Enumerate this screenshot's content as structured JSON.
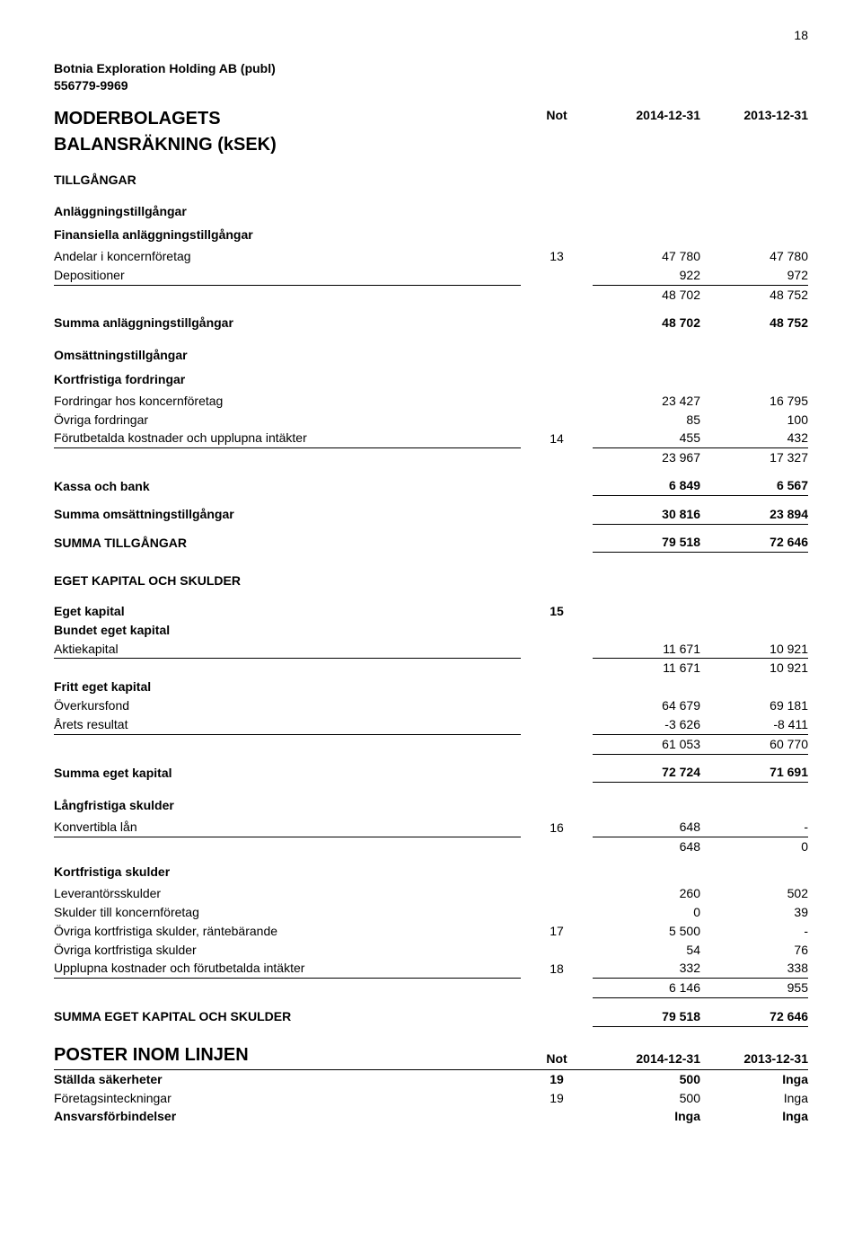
{
  "pageNumber": "18",
  "company": {
    "name": "Botnia Exploration Holding AB (publ)",
    "orgNo": "556779-9969"
  },
  "titleRow": {
    "left": "MODERBOLAGETS",
    "noteHdr": "Not",
    "col1": "2014-12-31",
    "col2": "2013-12-31"
  },
  "subtitle": "BALANSRÄKNING (kSEK)",
  "groups": [
    {
      "heading": "TILLGÅNGAR",
      "bigGap": false,
      "rows": []
    },
    {
      "heading": "Anläggningstillgångar",
      "rows": []
    },
    {
      "heading": "Finansiella anläggningstillgångar",
      "tight": true,
      "rows": [
        {
          "label": "Andelar i koncernföretag",
          "note": "13",
          "c1": "47 780",
          "c2": "47 780"
        },
        {
          "label": "Depositioner",
          "c1": "922",
          "c2": "972",
          "underline": true,
          "underlineLabel": true
        },
        {
          "c1": "48 702",
          "c2": "48 752"
        },
        {
          "spacer": true
        },
        {
          "label": "Summa anläggningstillgångar",
          "c1": "48 702",
          "c2": "48 752",
          "bold": true
        }
      ]
    },
    {
      "heading": "Omsättningstillgångar",
      "rows": []
    },
    {
      "heading": "Kortfristiga fordringar",
      "tight": true,
      "rows": [
        {
          "label": "Fordringar hos koncernföretag",
          "c1": "23 427",
          "c2": "16 795"
        },
        {
          "label": "Övriga fordringar",
          "c1": "85",
          "c2": "100"
        },
        {
          "label": "Förutbetalda kostnader och upplupna intäkter",
          "note": "14",
          "c1": "455",
          "c2": "432",
          "underline": true,
          "underlineLabel": true
        },
        {
          "c1": "23 967",
          "c2": "17 327"
        },
        {
          "spacer": true
        },
        {
          "label": "Kassa och bank",
          "c1": "6 849",
          "c2": "6 567",
          "bold": true,
          "underline": true
        },
        {
          "spacer": true
        },
        {
          "label": "Summa omsättningstillgångar",
          "c1": "30 816",
          "c2": "23 894",
          "bold": true,
          "underline": true
        },
        {
          "spacer": true
        },
        {
          "label": "SUMMA TILLGÅNGAR",
          "c1": "79 518",
          "c2": "72 646",
          "bold": true,
          "underline": true
        }
      ]
    },
    {
      "heading": "EGET KAPITAL OCH SKULDER",
      "bigGap": true,
      "rows": [
        {
          "spacer": true
        },
        {
          "label": "Eget kapital",
          "note": "15",
          "bold": true
        },
        {
          "label": "Bundet eget kapital",
          "bold": true
        },
        {
          "label": "Aktiekapital",
          "c1": "11 671",
          "c2": "10 921",
          "underline": true,
          "underlineLabel": true
        },
        {
          "c1": "11 671",
          "c2": "10 921"
        },
        {
          "label": "Fritt eget kapital",
          "bold": true
        },
        {
          "label": "Överkursfond",
          "c1": "64 679",
          "c2": "69 181"
        },
        {
          "label": "Årets resultat",
          "c1": "-3 626",
          "c2": "-8 411",
          "underline": true,
          "underlineLabel": true
        },
        {
          "c1": "61 053",
          "c2": "60 770",
          "underline": true
        },
        {
          "spacer": true
        },
        {
          "label": "Summa eget kapital",
          "c1": "72 724",
          "c2": "71 691",
          "bold": true,
          "underline": true
        }
      ]
    },
    {
      "heading": "Långfristiga skulder",
      "rows": [
        {
          "label": "Konvertibla lån",
          "note": "16",
          "c1": "648",
          "c2": "-",
          "underline": true,
          "underlineLabel": true
        },
        {
          "c1": "648",
          "c2": "0"
        }
      ]
    },
    {
      "heading": "Kortfristiga skulder",
      "tight": true,
      "rows": [
        {
          "label": "Leverantörsskulder",
          "c1": "260",
          "c2": "502"
        },
        {
          "label": "Skulder till koncernföretag",
          "c1": "0",
          "c2": "39"
        },
        {
          "label": "Övriga kortfristiga skulder, räntebärande",
          "note": "17",
          "c1": "5 500",
          "c2": "-"
        },
        {
          "label": "Övriga kortfristiga skulder",
          "c1": "54",
          "c2": "76"
        },
        {
          "label": "Upplupna kostnader och förutbetalda intäkter",
          "note": "18",
          "c1": "332",
          "c2": "338",
          "underline": true,
          "underlineLabel": true
        },
        {
          "c1": "6 146",
          "c2": "955",
          "underline": true
        },
        {
          "spacer": true
        },
        {
          "label": "SUMMA EGET KAPITAL OCH SKULDER",
          "c1": "79 518",
          "c2": "72 646",
          "bold": true,
          "underline": true
        }
      ]
    }
  ],
  "footer": {
    "titleRow": {
      "left": "POSTER INOM LINJEN",
      "noteHdr": "Not",
      "col1": "2014-12-31",
      "col2": "2013-12-31"
    },
    "rows": [
      {
        "label": "Ställda säkerheter",
        "note": "19",
        "c1": "500",
        "c2": "Inga",
        "bold": true
      },
      {
        "label": "  Företagsinteckningar",
        "note": "19",
        "c1": "500",
        "c2": "Inga"
      },
      {
        "label": "Ansvarsförbindelser",
        "c1": "Inga",
        "c2": "Inga",
        "bold": true
      }
    ]
  }
}
